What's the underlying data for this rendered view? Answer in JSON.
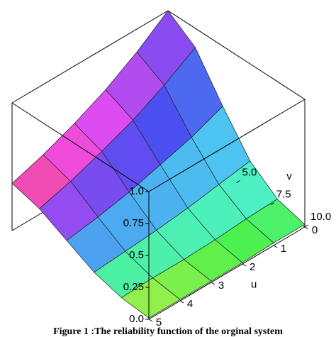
{
  "chart_data": {
    "type": "surface",
    "caption": "Figure 1 :The reliability function of the orginal system",
    "xlabel": "u",
    "ylabel": "v",
    "u": [
      0,
      1,
      2,
      3,
      4,
      5
    ],
    "v": [
      0,
      2,
      4,
      6,
      8,
      10
    ],
    "z": [
      [
        1,
        0.85,
        0.53,
        0.24,
        0.08,
        0.02
      ],
      [
        0.82,
        0.7,
        0.43,
        0.2,
        0.07,
        0.02
      ],
      [
        0.67,
        0.57,
        0.36,
        0.16,
        0.05,
        0.01
      ],
      [
        0.55,
        0.47,
        0.29,
        0.13,
        0.04,
        0.01
      ],
      [
        0.45,
        0.38,
        0.24,
        0.11,
        0.04,
        0.01
      ],
      [
        0.37,
        0.31,
        0.2,
        0.09,
        0.03,
        0.01
      ]
    ],
    "xlim": [
      0,
      5
    ],
    "ylim": [
      0,
      10
    ],
    "zlim": [
      0,
      1
    ],
    "xticks": [
      0,
      1,
      2,
      3,
      4,
      5
    ],
    "yticks": [
      {
        "value": 5,
        "label": "5.0"
      },
      7.5,
      {
        "value": 10,
        "label": "10.0"
      }
    ],
    "zticks": [
      {
        "value": 0,
        "label": "0.0"
      },
      0.25,
      0.5,
      0.75,
      {
        "value": 1,
        "label": "1.0"
      }
    ]
  }
}
